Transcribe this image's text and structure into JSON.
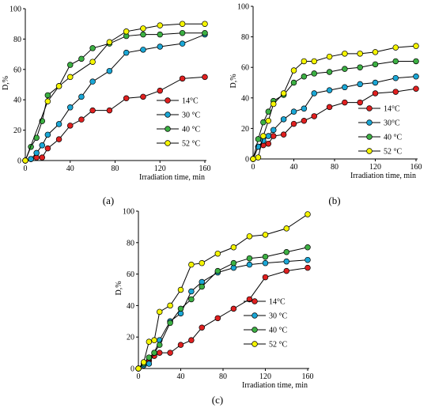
{
  "colors": {
    "14": "#e02020",
    "30": "#1aa7d6",
    "40": "#3cb043",
    "52": "#f5f500",
    "axis": "#000000"
  },
  "chart_data": [
    {
      "panel": "(a)",
      "type": "line",
      "ylabel": "D,%",
      "xlabel": "Irradiation time, min",
      "xlim": [
        0,
        160
      ],
      "ylim": [
        0,
        100
      ],
      "xticks": [
        0,
        40,
        80,
        120,
        160
      ],
      "yticks": [
        0,
        20,
        40,
        60,
        80,
        100
      ],
      "legend_position": "bottom-right",
      "series": [
        {
          "name": "14°C",
          "color": "14",
          "x": [
            0,
            5,
            10,
            15,
            20,
            30,
            40,
            50,
            60,
            75,
            90,
            105,
            120,
            140,
            160
          ],
          "y": [
            0,
            1,
            2,
            2,
            8,
            14,
            23,
            27,
            33,
            33,
            41,
            42,
            46,
            54,
            55
          ]
        },
        {
          "name": "30 °C",
          "color": "30",
          "x": [
            0,
            5,
            10,
            15,
            20,
            30,
            40,
            50,
            60,
            75,
            90,
            105,
            120,
            140,
            160
          ],
          "y": [
            0,
            1,
            5,
            10,
            17,
            24,
            35,
            42,
            52,
            59,
            71,
            73,
            75,
            77,
            83
          ]
        },
        {
          "name": "40 °C",
          "color": "40",
          "x": [
            0,
            5,
            10,
            15,
            20,
            30,
            40,
            50,
            60,
            75,
            90,
            105,
            120,
            140,
            160
          ],
          "y": [
            0,
            9,
            15,
            26,
            43,
            49,
            63,
            67,
            74,
            77,
            82,
            83,
            83,
            84,
            84
          ]
        },
        {
          "name": "52 °C",
          "color": "52",
          "x": [
            0,
            20,
            30,
            40,
            60,
            75,
            90,
            105,
            120,
            140,
            160
          ],
          "y": [
            0,
            39,
            49,
            55,
            65,
            78,
            85,
            87,
            89,
            90,
            90
          ]
        }
      ]
    },
    {
      "panel": "(b)",
      "type": "line",
      "ylabel": "D,%",
      "xlabel": "Irradiation time, min",
      "xlim": [
        0,
        160
      ],
      "ylim": [
        0,
        100
      ],
      "xticks": [
        0,
        40,
        80,
        120,
        160
      ],
      "yticks": [
        0,
        20,
        40,
        60,
        80,
        100
      ],
      "legend_position": "bottom-right",
      "series": [
        {
          "name": "14°C",
          "color": "14",
          "x": [
            0,
            5,
            10,
            15,
            20,
            30,
            40,
            50,
            60,
            75,
            90,
            105,
            120,
            140,
            160
          ],
          "y": [
            0,
            8,
            9,
            10,
            15,
            16,
            23,
            25,
            28,
            34,
            37,
            37,
            43,
            44,
            46
          ]
        },
        {
          "name": "30°C",
          "color": "30",
          "x": [
            0,
            5,
            10,
            15,
            20,
            30,
            40,
            50,
            60,
            75,
            90,
            105,
            120,
            140,
            160
          ],
          "y": [
            0,
            8,
            12,
            15,
            19,
            26,
            31,
            33,
            43,
            45,
            47,
            49,
            50,
            53,
            54
          ]
        },
        {
          "name": "40 °C",
          "color": "40",
          "x": [
            0,
            5,
            10,
            15,
            20,
            30,
            40,
            50,
            60,
            75,
            90,
            105,
            120,
            140,
            160
          ],
          "y": [
            0,
            13,
            24,
            31,
            38,
            42,
            50,
            54,
            56,
            57,
            59,
            60,
            62,
            64,
            64
          ]
        },
        {
          "name": "52 °C",
          "color": "52",
          "x": [
            0,
            5,
            10,
            15,
            20,
            30,
            40,
            50,
            60,
            75,
            90,
            105,
            120,
            140,
            160
          ],
          "y": [
            0,
            1,
            15,
            25,
            36,
            43,
            58,
            64,
            64,
            67,
            69,
            69,
            70,
            73,
            74
          ]
        }
      ]
    },
    {
      "panel": "(c)",
      "type": "line",
      "ylabel": "D,%",
      "xlabel": "Irradiation time, min",
      "xlim": [
        0,
        160
      ],
      "ylim": [
        0,
        100
      ],
      "xticks": [
        0,
        40,
        80,
        120,
        160
      ],
      "yticks": [
        0,
        20,
        40,
        60,
        80,
        100
      ],
      "legend_position": "bottom-right",
      "series": [
        {
          "name": "14°C",
          "color": "14",
          "x": [
            0,
            5,
            10,
            15,
            20,
            30,
            40,
            50,
            60,
            75,
            90,
            105,
            120,
            140,
            160
          ],
          "y": [
            0,
            3,
            5,
            8,
            10,
            10,
            15,
            18,
            26,
            32,
            38,
            44,
            58,
            62,
            64
          ]
        },
        {
          "name": "30 °C",
          "color": "30",
          "x": [
            0,
            5,
            10,
            15,
            20,
            30,
            40,
            50,
            60,
            75,
            90,
            105,
            120,
            140,
            160
          ],
          "y": [
            0,
            2,
            3,
            10,
            18,
            30,
            35,
            49,
            55,
            61,
            64,
            66,
            67,
            68,
            69
          ]
        },
        {
          "name": "40 °C",
          "color": "40",
          "x": [
            0,
            5,
            10,
            15,
            20,
            30,
            40,
            50,
            60,
            75,
            90,
            105,
            120,
            140,
            160
          ],
          "y": [
            0,
            3,
            7,
            10,
            15,
            29,
            38,
            44,
            52,
            62,
            67,
            70,
            71,
            74,
            77
          ]
        },
        {
          "name": "52 °C",
          "color": "52",
          "x": [
            0,
            5,
            10,
            15,
            20,
            30,
            40,
            50,
            60,
            75,
            90,
            105,
            120,
            140,
            160
          ],
          "y": [
            0,
            4,
            17,
            18,
            36,
            40,
            50,
            66,
            67,
            73,
            77,
            84,
            85,
            89,
            98
          ]
        }
      ]
    }
  ]
}
